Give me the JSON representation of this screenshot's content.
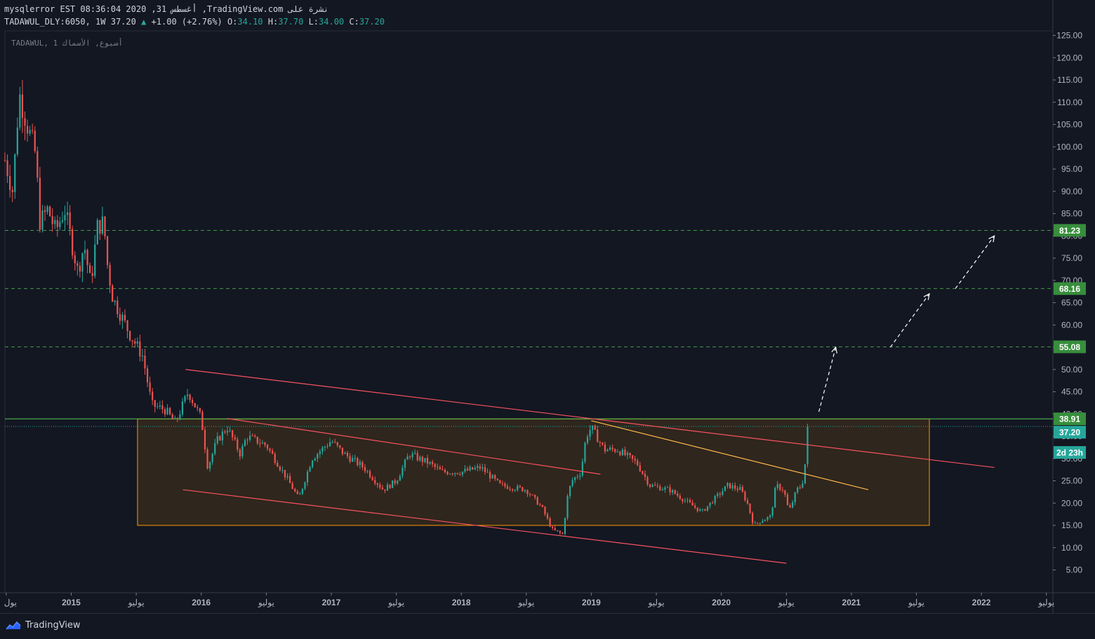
{
  "header": {
    "line1": "mysqlerror EST 08:36:04 2020 ,31 أغسطس ,TradingView.com نشرة على",
    "symbol": "TADAWUL_DLY:6050, 1W 37.20",
    "change": "+1.00 (+2.76%)",
    "o_label": "O:",
    "o_value": "34.10",
    "h_label": "H:",
    "h_value": "37.70",
    "l_label": "L:",
    "l_value": "34.00",
    "c_label": "C:",
    "c_value": "37.20"
  },
  "footer": {
    "brand": "TradingView"
  },
  "chart_data": {
    "type": "candlestick",
    "watermark": "TADAWUL, 1 أسبوع, الأسماك",
    "y_axis": {
      "ylim": [
        0,
        127.5
      ],
      "ticks": [
        "125.00",
        "120.00",
        "115.00",
        "110.00",
        "105.00",
        "100.00",
        "95.00",
        "90.00",
        "85.00",
        "80.00",
        "75.00",
        "70.00",
        "65.00",
        "60.00",
        "55.00",
        "50.00",
        "45.00",
        "40.00",
        "35.00",
        "30.00",
        "25.00",
        "20.00",
        "15.00",
        "10.00",
        "5.00"
      ],
      "tick_values": [
        125,
        120,
        115,
        110,
        105,
        100,
        95,
        90,
        85,
        80,
        75,
        70,
        65,
        60,
        55,
        50,
        45,
        40,
        35,
        30,
        25,
        20,
        15,
        10,
        5
      ]
    },
    "x_axis": {
      "ticks": [
        "يول",
        "2015",
        "يوليو",
        "2016",
        "يوليو",
        "2017",
        "يوليو",
        "2018",
        "يوليو",
        "2019",
        "يوليو",
        "2020",
        "يوليو",
        "2021",
        "يوليو",
        "2022",
        "يوليو"
      ],
      "tick_years": [
        2014.5,
        2015.0,
        2015.5,
        2016.0,
        2016.5,
        2017.0,
        2017.5,
        2018.0,
        2018.5,
        2019.0,
        2019.5,
        2020.0,
        2020.5,
        2021.0,
        2021.5,
        2022.0,
        2022.5
      ],
      "bold": [
        false,
        true,
        false,
        true,
        false,
        true,
        false,
        true,
        false,
        true,
        false,
        true,
        false,
        true,
        false,
        true,
        false
      ],
      "xlim": [
        2014.49,
        2022.55
      ]
    },
    "price_labels": [
      {
        "value": 81.23,
        "text": "81.23",
        "color": "#26a69a"
      },
      {
        "value": 68.16,
        "text": "68.16",
        "color": "#26a69a"
      },
      {
        "value": 55.08,
        "text": "55.08",
        "color": "#26a69a"
      },
      {
        "value": 38.91,
        "text": "38.91",
        "color": "#26a69a"
      },
      {
        "value": 37.2,
        "text": "37.20",
        "color": "#26a69a"
      }
    ],
    "countdown": "2d 23h",
    "last_price": 37.2,
    "horizontal_levels": [
      {
        "value": 81.23,
        "style": "dashed",
        "color": "#4caf50"
      },
      {
        "value": 68.16,
        "style": "dashed",
        "color": "#4caf50"
      },
      {
        "value": 55.08,
        "style": "dashed",
        "color": "#4caf50"
      },
      {
        "value": 38.91,
        "style": "solid",
        "color": "#4caf50"
      }
    ],
    "rectangle": {
      "x1": 2015.51,
      "x2": 2021.6,
      "y1": 38.91,
      "y2": 15.0,
      "color": "#ff9800"
    },
    "trendlines": [
      {
        "x1": 2015.88,
        "y1": 50.0,
        "x2": 2022.1,
        "y2": 28.0,
        "color": "#f7525f"
      },
      {
        "x1": 2016.2,
        "y1": 39.0,
        "x2": 2019.07,
        "y2": 26.5,
        "color": "#f7525f"
      },
      {
        "x1": 2015.86,
        "y1": 23.0,
        "x2": 2020.5,
        "y2": 6.5,
        "color": "#f7525f"
      },
      {
        "x1": 2019.0,
        "y1": 38.5,
        "x2": 2021.13,
        "y2": 23.0,
        "color": "#ffb74d"
      }
    ],
    "projection_arrows": [
      {
        "points": [
          [
            2020.75,
            40.5
          ],
          [
            2020.88,
            55.0
          ]
        ]
      },
      {
        "points": [
          [
            2021.3,
            55.0
          ],
          [
            2021.6,
            67.0
          ]
        ]
      },
      {
        "points": [
          [
            2021.8,
            68.16
          ],
          [
            2022.1,
            80.0
          ]
        ]
      }
    ],
    "anchors": [
      [
        2014.49,
        97
      ],
      [
        2014.55,
        90
      ],
      [
        2014.6,
        112
      ],
      [
        2014.67,
        104
      ],
      [
        2014.72,
        99
      ],
      [
        2014.73,
        96
      ],
      [
        2014.76,
        83
      ],
      [
        2014.82,
        86
      ],
      [
        2014.88,
        81
      ],
      [
        2014.95,
        86
      ],
      [
        2015.05,
        72
      ],
      [
        2015.1,
        78
      ],
      [
        2015.15,
        69
      ],
      [
        2015.2,
        82
      ],
      [
        2015.25,
        83
      ],
      [
        2015.28,
        73
      ],
      [
        2015.32,
        66
      ],
      [
        2015.45,
        58
      ],
      [
        2015.55,
        53
      ],
      [
        2015.62,
        42
      ],
      [
        2015.72,
        41
      ],
      [
        2015.8,
        38
      ],
      [
        2015.9,
        45
      ],
      [
        2016.0,
        39
      ],
      [
        2016.05,
        28
      ],
      [
        2016.12,
        34
      ],
      [
        2016.2,
        37
      ],
      [
        2016.3,
        31
      ],
      [
        2016.35,
        35
      ],
      [
        2016.5,
        33
      ],
      [
        2016.65,
        26
      ],
      [
        2016.75,
        21
      ],
      [
        2016.85,
        30
      ],
      [
        2017.0,
        34
      ],
      [
        2017.1,
        31
      ],
      [
        2017.25,
        28
      ],
      [
        2017.4,
        23
      ],
      [
        2017.5,
        25
      ],
      [
        2017.6,
        31
      ],
      [
        2017.75,
        29
      ],
      [
        2017.85,
        27
      ],
      [
        2018.0,
        27
      ],
      [
        2018.15,
        28
      ],
      [
        2018.3,
        24
      ],
      [
        2018.5,
        23
      ],
      [
        2018.62,
        19
      ],
      [
        2018.7,
        14
      ],
      [
        2018.78,
        13
      ],
      [
        2018.82,
        22
      ],
      [
        2018.85,
        25
      ],
      [
        2018.92,
        27
      ],
      [
        2018.96,
        35
      ],
      [
        2019.0,
        37
      ],
      [
        2019.1,
        32
      ],
      [
        2019.2,
        32
      ],
      [
        2019.35,
        29
      ],
      [
        2019.45,
        24
      ],
      [
        2019.6,
        23
      ],
      [
        2019.75,
        20
      ],
      [
        2019.85,
        18
      ],
      [
        2019.95,
        21
      ],
      [
        2020.05,
        24
      ],
      [
        2020.15,
        23
      ],
      [
        2020.2,
        20
      ],
      [
        2020.25,
        15
      ],
      [
        2020.3,
        16
      ],
      [
        2020.38,
        17
      ],
      [
        2020.42,
        24
      ],
      [
        2020.48,
        23
      ],
      [
        2020.52,
        18
      ],
      [
        2020.58,
        23
      ],
      [
        2020.62,
        24
      ],
      [
        2020.65,
        30
      ],
      [
        2020.68,
        37.2
      ]
    ]
  }
}
